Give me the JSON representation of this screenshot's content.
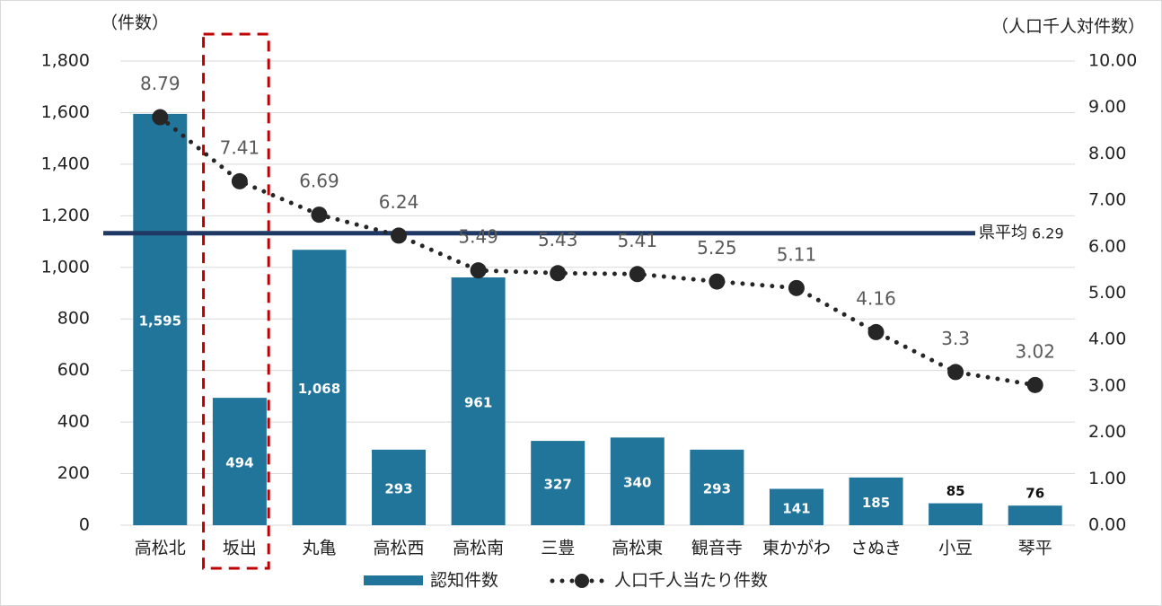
{
  "chart_data": {
    "type": "bar",
    "y_label": "（件数）",
    "y2_label": "（人口千人対件数）",
    "categories": [
      "高松北",
      "坂出",
      "丸亀",
      "高松西",
      "高松南",
      "三豊",
      "高松東",
      "観音寺",
      "東かがわ",
      "さぬき",
      "小豆",
      "琴平"
    ],
    "series": [
      {
        "name": "認知件数",
        "type": "bar",
        "color": "#21759b",
        "values": [
          1595,
          494,
          1068,
          293,
          961,
          327,
          340,
          293,
          141,
          185,
          85,
          76
        ],
        "value_labels": [
          "1,595",
          "494",
          "1,068",
          "293",
          "961",
          "327",
          "340",
          "293",
          "141",
          "185",
          "85",
          "76"
        ]
      },
      {
        "name": "人口千人当たり件数",
        "type": "line",
        "axis": "y2",
        "color": "#262626",
        "values": [
          8.79,
          7.41,
          6.69,
          6.24,
          5.49,
          5.43,
          5.41,
          5.25,
          5.11,
          4.16,
          3.3,
          3.02
        ]
      }
    ],
    "reference_line": {
      "label": "県平均",
      "value": 6.29,
      "axis": "y2",
      "color": "#1f3864"
    },
    "ylim": [
      0,
      1800
    ],
    "yticks": [
      0,
      200,
      400,
      600,
      800,
      {
        "value": 1000,
        "label": "1,000"
      },
      {
        "value": 1200,
        "label": "1,200"
      },
      {
        "value": 1400,
        "label": "1,400"
      },
      {
        "value": 1600,
        "label": "1,600"
      },
      {
        "value": 1800,
        "label": "1,800"
      }
    ],
    "y2lim": [
      0,
      10
    ],
    "y2ticks": [
      {
        "value": 0,
        "label": "0.00"
      },
      {
        "value": 1,
        "label": "1.00"
      },
      {
        "value": 2,
        "label": "2.00"
      },
      {
        "value": 3,
        "label": "3.00"
      },
      {
        "value": 4,
        "label": "4.00"
      },
      {
        "value": 5,
        "label": "5.00"
      },
      {
        "value": 6,
        "label": "6.00"
      },
      {
        "value": 7,
        "label": "7.00"
      },
      {
        "value": 8,
        "label": "8.00"
      },
      {
        "value": 9,
        "label": "9.00"
      },
      {
        "value": 10,
        "label": "10.00"
      }
    ],
    "grid": true,
    "legend": "bottom"
  }
}
